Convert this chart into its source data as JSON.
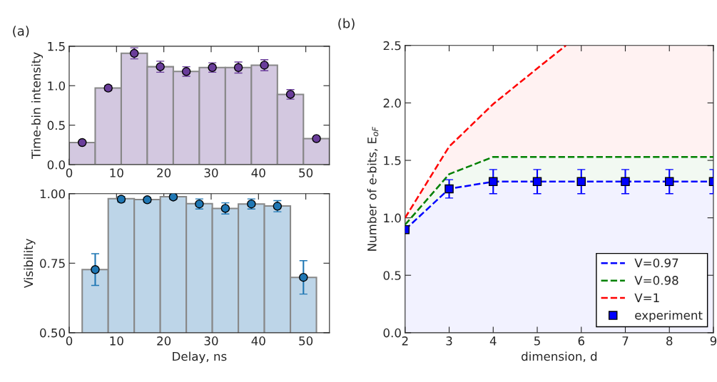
{
  "chart_data": [
    {
      "type": "histogram",
      "title": "(a)",
      "ylabel": "Time-bin intensity",
      "bins": [
        0,
        5.5,
        11,
        16.5,
        22,
        27.5,
        33,
        38.5,
        44,
        49.5,
        55
      ],
      "values": [
        0.28,
        0.97,
        1.41,
        1.24,
        1.18,
        1.23,
        1.23,
        1.26,
        0.89,
        0.33
      ],
      "color": "#d3c8e0",
      "series": [
        {
          "type": "scatter",
          "color": "#6a3d9a",
          "x": [
            2.75,
            8.25,
            13.75,
            19.25,
            24.75,
            30.25,
            35.75,
            41.25,
            46.75,
            52.25
          ],
          "values": [
            0.28,
            0.97,
            1.41,
            1.24,
            1.18,
            1.23,
            1.23,
            1.26,
            0.89,
            0.33
          ],
          "errors": [
            null,
            0.03,
            0.07,
            0.07,
            0.06,
            0.06,
            0.07,
            0.07,
            0.06,
            0.02
          ]
        }
      ],
      "marker": "circle",
      "xlim": [
        0,
        55
      ],
      "xticks": [
        0,
        10,
        20,
        30,
        40,
        50
      ],
      "ylim": [
        0,
        1.5
      ],
      "yticks": [
        {
          "value": 0,
          "label": "0.0"
        },
        {
          "value": 0.5,
          "label": "0.5"
        },
        {
          "value": 1.0,
          "label": "1.0"
        },
        {
          "value": 1.5,
          "label": "1.5"
        }
      ]
    },
    {
      "type": "histogram",
      "xlabel": "Delay, ns",
      "ylabel": "Visibility",
      "bins": [
        2.75,
        8.25,
        13.75,
        19.25,
        24.75,
        30.25,
        35.75,
        41.25,
        46.75,
        52.25
      ],
      "values": [
        0.727,
        0.982,
        0.979,
        0.989,
        0.964,
        0.947,
        0.963,
        0.956,
        0.699
      ],
      "color": "#bdd5e8",
      "series": [
        {
          "type": "scatter",
          "color": "#1f77b4",
          "x": [
            5.5,
            11,
            16.5,
            22,
            27.5,
            33,
            38.5,
            44,
            49.5
          ],
          "values": [
            0.727,
            0.98,
            0.978,
            0.988,
            0.963,
            0.947,
            0.963,
            0.955,
            0.699
          ],
          "errors": [
            0.057,
            0.01,
            0.008,
            0.008,
            0.018,
            0.02,
            0.018,
            0.02,
            0.06
          ]
        }
      ],
      "marker": "circle",
      "xlim": [
        0,
        55
      ],
      "xticks": [
        0,
        10,
        20,
        30,
        40,
        50
      ],
      "ylim": [
        0.5,
        1.0
      ],
      "yticks": [
        {
          "value": 0.5,
          "label": "0.50"
        },
        {
          "value": 0.75,
          "label": "0.75"
        },
        {
          "value": 1.0,
          "label": "1.00"
        }
      ]
    },
    {
      "type": "line",
      "title": "(b)",
      "xlabel": "dimension, d",
      "ylabel": "Number of e-bits, E$_{oF}$",
      "x": [
        2,
        3,
        4,
        5,
        6,
        7,
        8,
        9
      ],
      "series": [
        {
          "type": "line",
          "name": "V=0.97",
          "color": "#0000ff",
          "line_style": "dashed",
          "values": [
            0.897,
            1.252,
            1.315,
            1.315,
            1.315,
            1.315,
            1.315,
            1.315
          ],
          "lower": [
            0,
            0,
            0,
            0,
            0,
            0,
            0,
            0
          ],
          "upper": [
            0.897,
            1.252,
            1.315,
            1.315,
            1.315,
            1.315,
            1.315,
            1.315
          ]
        },
        {
          "type": "line",
          "name": "V=0.98",
          "color": "#008000",
          "line_style": "dashed",
          "values": [
            0.94,
            1.38,
            1.53,
            1.53,
            1.53,
            1.53,
            1.53,
            1.53
          ],
          "lower": [
            0.897,
            1.252,
            1.315,
            1.315,
            1.315,
            1.315,
            1.315,
            1.315
          ],
          "upper": [
            0.94,
            1.38,
            1.53,
            1.53,
            1.53,
            1.53,
            1.53,
            1.53
          ]
        },
        {
          "type": "line",
          "name": "V=1",
          "color": "#ff0000",
          "line_style": "dashed",
          "x": [
            2,
            3,
            4,
            5,
            5.65,
            9
          ],
          "values": [
            1.0,
            1.62,
            1.99,
            2.3,
            2.5,
            null
          ],
          "lower": [
            0.94,
            1.38,
            1.53,
            1.53,
            1.53,
            1.53
          ],
          "upper": [
            1.0,
            1.62,
            1.99,
            2.3,
            2.5,
            2.5
          ]
        },
        {
          "type": "scatter",
          "name": "experiment",
          "color": "#0000ff",
          "marker": "square",
          "values": [
            0.897,
            1.252,
            1.315,
            1.315,
            1.315,
            1.315,
            1.315,
            1.315
          ],
          "errors": [
            null,
            0.08,
            0.105,
            0.105,
            0.105,
            0.105,
            0.105,
            0.105
          ]
        }
      ],
      "legend": "bottom right",
      "xlim": [
        2,
        9
      ],
      "xticks": [
        2,
        3,
        4,
        5,
        6,
        7,
        8,
        9
      ],
      "ylim": [
        0,
        2.5
      ],
      "yticks": [
        {
          "value": 0,
          "label": "0.0"
        },
        {
          "value": 0.5,
          "label": "0.5"
        },
        {
          "value": 1.0,
          "label": "1.0"
        },
        {
          "value": 1.5,
          "label": "1.5"
        },
        {
          "value": 2.0,
          "label": "2.0"
        },
        {
          "value": 2.5,
          "label": "2.5"
        }
      ]
    }
  ]
}
